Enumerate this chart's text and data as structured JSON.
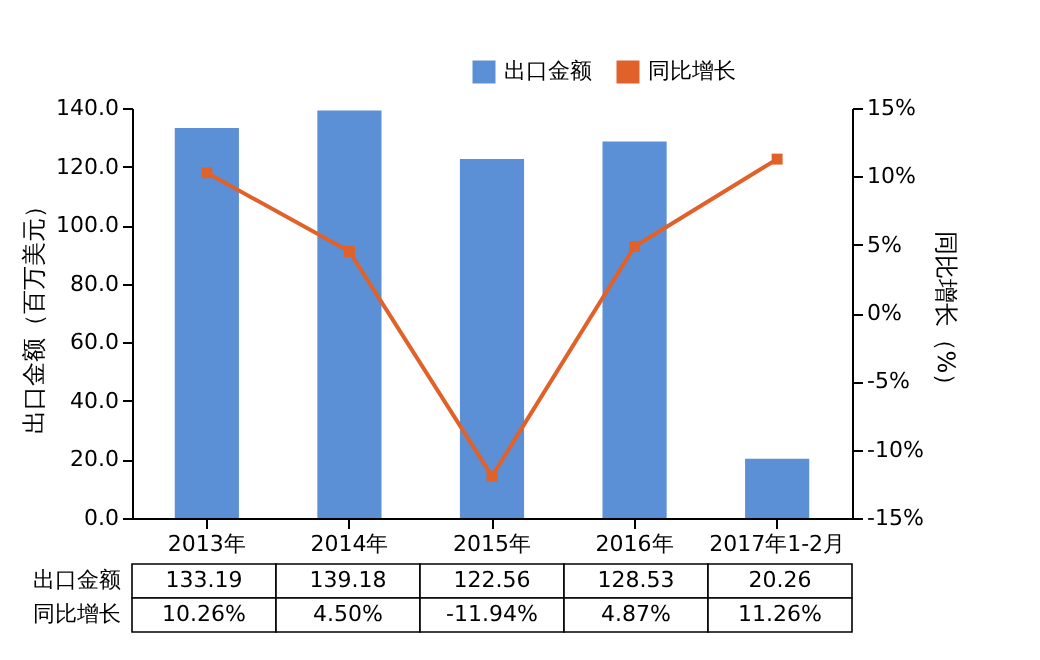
{
  "chart_data": {
    "type": "bar",
    "categories": [
      "2013年",
      "2014年",
      "2015年",
      "2016年",
      "2017年1-2月"
    ],
    "ylabel": "出口金额（百万美元）",
    "y2label": "同比增长（%）",
    "ylim": [
      0,
      140
    ],
    "yticks": [
      {
        "value": 0,
        "label": "0.0"
      },
      {
        "value": 20,
        "label": "20.0"
      },
      {
        "value": 40,
        "label": "40.0"
      },
      {
        "value": 60,
        "label": "60.0"
      },
      {
        "value": 80,
        "label": "80.0"
      },
      {
        "value": 100,
        "label": "100.0"
      },
      {
        "value": 120,
        "label": "120.0"
      },
      {
        "value": 140,
        "label": "140.0"
      }
    ],
    "y2lim": [
      -15,
      15
    ],
    "y2ticks": [
      {
        "value": -15,
        "label": "-15%"
      },
      {
        "value": -10,
        "label": "-10%"
      },
      {
        "value": -5,
        "label": "-5%"
      },
      {
        "value": 0,
        "label": "0%"
      },
      {
        "value": 5,
        "label": "5%"
      },
      {
        "value": 10,
        "label": "10%"
      },
      {
        "value": 15,
        "label": "15%"
      }
    ],
    "series": [
      {
        "name": "出口金额",
        "color": "#5b8fd6",
        "values": [
          133.19,
          139.18,
          122.56,
          128.53,
          20.26
        ],
        "value_labels": [
          "133.19",
          "139.18",
          "122.56",
          "128.53",
          "20.26"
        ]
      },
      {
        "name": "同比增长",
        "type": "line",
        "axis": "y2",
        "color": "#e0622a",
        "values": [
          10.26,
          4.5,
          -11.94,
          4.87,
          11.26
        ],
        "value_labels": [
          "10.26%",
          "4.50%",
          "-11.94%",
          "4.87%",
          "11.26%"
        ]
      }
    ],
    "grid": false,
    "legend": "top right",
    "marker": "square",
    "line_style": "solid"
  }
}
